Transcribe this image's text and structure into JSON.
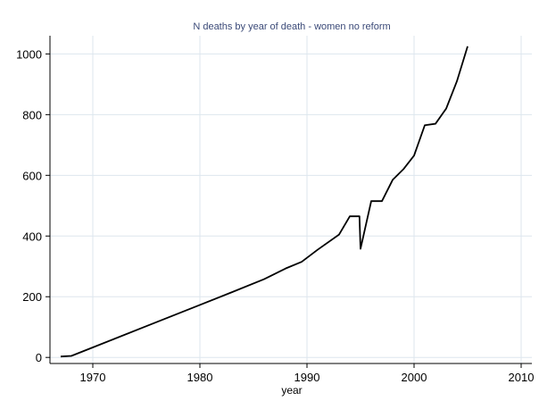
{
  "chart_data": {
    "type": "line",
    "title": "N deaths by year of death - women no reform",
    "xlabel": "year",
    "ylabel": "",
    "xlim": [
      1966,
      2011
    ],
    "ylim": [
      -20,
      1060
    ],
    "xticks": [
      1970,
      1980,
      1990,
      2000,
      2010
    ],
    "yticks": [
      0,
      200,
      400,
      600,
      800,
      1000
    ],
    "grid": true,
    "series": [
      {
        "x": [
          1967,
          1968,
          1970,
          1975,
          1980,
          1983,
          1986,
          1988,
          1989.5,
          1991,
          1993,
          1994,
          1994.9,
          1995,
          1996,
          1997,
          1998,
          1999,
          2000,
          2001,
          2002,
          2003,
          2004,
          2005
        ],
        "values": [
          3,
          5,
          33,
          103,
          173,
          215,
          258,
          293,
          315,
          355,
          405,
          465,
          465,
          358,
          515,
          515,
          585,
          620,
          665,
          765,
          770,
          820,
          910,
          1025
        ],
        "color": "#000000"
      }
    ]
  }
}
